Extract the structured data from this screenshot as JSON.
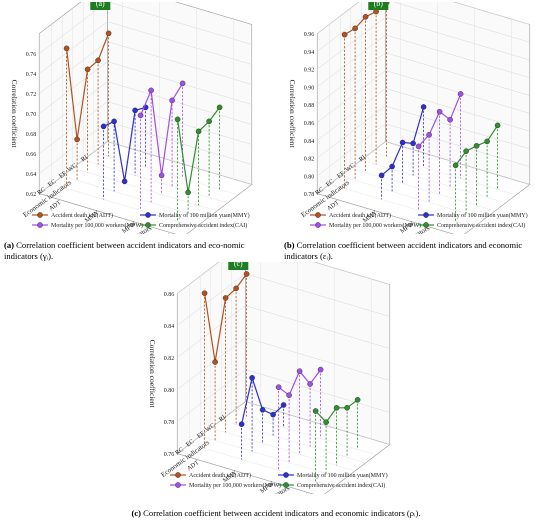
{
  "colors": {
    "ADT": "#b4511f",
    "MMY": "#2d2fd0",
    "MPW": "#a24ee8",
    "CAI": "#2e8f2e",
    "badge": "#1e7d1e"
  },
  "chart_data": [
    {
      "type": "line",
      "panel_label": "(a)",
      "zlabel": "Correlation coefficient",
      "zlim": [
        0.62,
        0.78
      ],
      "zticks": [
        "0.62",
        "0.64",
        "0.66",
        "0.68",
        "0.70",
        "0.72",
        "0.74",
        "0.76"
      ],
      "economic_axis_label": "Economic indicators",
      "accident_axis_label": "Accident indicators",
      "economic_ticks": [
        "RC",
        "EC",
        "EF",
        "WC",
        "RI"
      ],
      "accident_ticks": [
        "ADT",
        "MMY",
        "MPW",
        "CAI"
      ],
      "series": [
        {
          "name": "Accident death toll(ADT)",
          "key": "ADT",
          "values": [
            0.76,
            0.661,
            0.723,
            0.724,
            0.743
          ]
        },
        {
          "name": "Mortality of 100 million yuan(MMY)",
          "key": "MMY",
          "values": [
            0.693,
            0.69,
            0.622,
            0.685,
            0.68
          ]
        },
        {
          "name": "Mortality per 100,000 workers(MPW)",
          "key": "MPW",
          "values": [
            0.715,
            0.732,
            0.639,
            0.706,
            0.715
          ]
        },
        {
          "name": "Comprehensive accident index(CAI)",
          "key": "CAI",
          "values": [
            0.722,
            0.641,
            0.694,
            0.696,
            0.702
          ]
        }
      ],
      "caption_bold": "(a)",
      "caption_text": " Correlation coefficient between accident indicators and eco-nomic indicators (γᵢ)."
    },
    {
      "type": "line",
      "panel_label": "(b)",
      "zlabel": "Correlation coefficient",
      "zlim": [
        0.78,
        0.96
      ],
      "zticks": [
        "0.78",
        "0.80",
        "0.82",
        "0.84",
        "0.86",
        "0.88",
        "0.90",
        "0.92",
        "0.94",
        "0.96"
      ],
      "economic_axis_label": "Economic indicators",
      "accident_axis_label": "Accident indicators",
      "economic_ticks": [
        "RC",
        "EC",
        "EF",
        "WC",
        "RI"
      ],
      "accident_ticks": [
        "ADT",
        "MMY",
        "MPW",
        "CAI"
      ],
      "series": [
        {
          "name": "Accident death toll(ADT)",
          "key": "ADT",
          "values": [
            0.953,
            0.951,
            0.955,
            0.952,
            0.953
          ]
        },
        {
          "name": "Mortality of 100 million yuan(MMY)",
          "key": "MMY",
          "values": [
            0.807,
            0.808,
            0.826,
            0.816,
            0.848
          ]
        },
        {
          "name": "Mortality per 100,000 workers(MPW)",
          "key": "MPW",
          "values": [
            0.852,
            0.856,
            0.873,
            0.855,
            0.875
          ]
        },
        {
          "name": "Comprehensive accident index(CAI)",
          "key": "CAI",
          "values": [
            0.843,
            0.85,
            0.847,
            0.843,
            0.852
          ]
        }
      ],
      "caption_bold": "(b)",
      "caption_text": " Correlation coefficient between accident indicators and economic indicators (εᵢ)."
    },
    {
      "type": "line",
      "panel_label": "(c)",
      "zlabel": "Correlation coefficient",
      "zlim": [
        0.76,
        0.86
      ],
      "zticks": [
        "0.76",
        "0.78",
        "0.80",
        "0.82",
        "0.84",
        "0.86"
      ],
      "economic_axis_label": "Economic indicators",
      "accident_axis_label": "Accident indicators",
      "economic_ticks": [
        "RC",
        "EC",
        "EF",
        "WC",
        "RI"
      ],
      "accident_ticks": [
        "ADT",
        "MMY",
        "MPW",
        "CAI"
      ],
      "series": [
        {
          "name": "Accident death toll(ADT)",
          "key": "ADT",
          "values": [
            0.857,
            0.809,
            0.844,
            0.845,
            0.849
          ]
        },
        {
          "name": "Mortality of 100 million yuan(MMY)",
          "key": "MMY",
          "values": [
            0.782,
            0.806,
            0.781,
            0.773,
            0.774
          ]
        },
        {
          "name": "Mortality per 100,000 workers(MPW)",
          "key": "MPW",
          "values": [
            0.812,
            0.802,
            0.812,
            0.799,
            0.803
          ]
        },
        {
          "name": "Comprehensive accident index(CAI)",
          "key": "CAI",
          "values": [
            0.804,
            0.792,
            0.796,
            0.791,
            0.791
          ]
        }
      ],
      "caption_bold": "(c)",
      "caption_text": " Correlation coefficient between accident indicators and economic indicators (ρᵢ)."
    }
  ]
}
